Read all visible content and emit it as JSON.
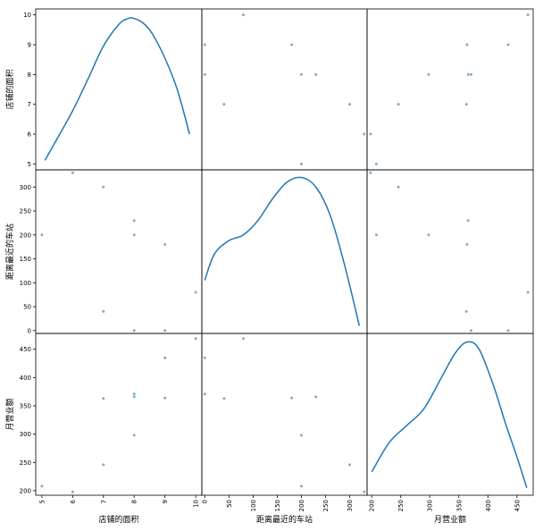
{
  "chart_data": {
    "type": "scatter",
    "variables": [
      "店铺的面积",
      "距离最近的车站",
      "月营业额"
    ],
    "observations": [
      {
        "area": 10,
        "station": 80,
        "sales": 469
      },
      {
        "area": 8,
        "station": 0,
        "sales": 371
      },
      {
        "area": 8,
        "station": 200,
        "sales": 298
      },
      {
        "area": 5,
        "station": 200,
        "sales": 208
      },
      {
        "area": 7,
        "station": 300,
        "sales": 246
      },
      {
        "area": 8,
        "station": 230,
        "sales": 366
      },
      {
        "area": 7,
        "station": 40,
        "sales": 363
      },
      {
        "area": 9,
        "station": 0,
        "sales": 435
      },
      {
        "area": 6,
        "station": 330,
        "sales": 198
      },
      {
        "area": 9,
        "station": 180,
        "sales": 364
      }
    ],
    "ranges": {
      "area": [
        4.8,
        10.2
      ],
      "station": [
        -6,
        336
      ],
      "sales": [
        192,
        478
      ]
    },
    "ticks": {
      "area": [
        5,
        6,
        7,
        8,
        9,
        10
      ],
      "station": [
        0,
        50,
        100,
        150,
        200,
        250,
        300
      ],
      "sales": [
        200,
        250,
        300,
        350,
        400,
        450
      ]
    },
    "density": {
      "area": {
        "x": [
          5.1,
          5.5,
          6,
          6.5,
          7,
          7.5,
          7.8,
          8,
          8.3,
          8.6,
          9,
          9.4,
          9.8
        ],
        "y": [
          5.12,
          5.85,
          6.78,
          7.85,
          8.95,
          9.68,
          9.88,
          9.88,
          9.72,
          9.35,
          8.55,
          7.5,
          6.0
        ]
      },
      "station": {
        "x": [
          0,
          20,
          50,
          80,
          110,
          140,
          170,
          200,
          230,
          260,
          290,
          320
        ],
        "y": [
          105,
          160,
          188,
          200,
          230,
          275,
          310,
          320,
          300,
          240,
          135,
          10
        ]
      },
      "sales": {
        "x": [
          200,
          230,
          260,
          290,
          320,
          345,
          365,
          385,
          410,
          430,
          450,
          467
        ],
        "y": [
          233,
          285,
          315,
          345,
          400,
          445,
          463,
          450,
          385,
          320,
          260,
          205
        ]
      }
    },
    "series_color": "#1f77b4",
    "point_color": "#1f77b4",
    "labels": {
      "area": "店铺的面积",
      "station": "距离最近的车站",
      "sales": "月营业额"
    }
  }
}
